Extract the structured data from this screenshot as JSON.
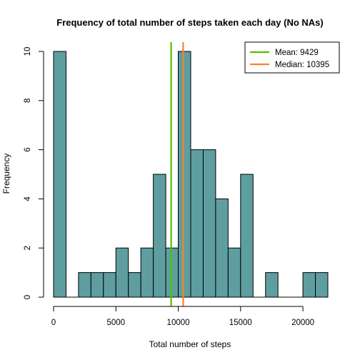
{
  "chart_data": {
    "type": "bar",
    "title": "Frequency of total number of steps taken each day (No NAs)",
    "xlabel": "Total number of steps",
    "ylabel": "Frequency",
    "bin_width": 1000,
    "bin_starts": [
      0,
      1000,
      2000,
      3000,
      4000,
      5000,
      6000,
      7000,
      8000,
      9000,
      10000,
      11000,
      12000,
      13000,
      14000,
      15000,
      16000,
      17000,
      18000,
      19000,
      20000,
      21000
    ],
    "values": [
      10,
      0,
      1,
      1,
      1,
      2,
      1,
      2,
      5,
      2,
      10,
      6,
      6,
      4,
      2,
      5,
      0,
      1,
      0,
      0,
      1,
      1
    ],
    "bar_color": "#5f9ea0",
    "xlim": [
      0,
      22000
    ],
    "ylim": [
      0,
      10
    ],
    "xticks": [
      0,
      5000,
      10000,
      15000,
      20000
    ],
    "yticks": [
      0,
      2,
      4,
      6,
      8,
      10
    ],
    "mean": {
      "label": "Mean: 9429",
      "value": 9429,
      "color": "#55c000"
    },
    "median": {
      "label": "Median: 10395",
      "value": 10395,
      "color": "#ff7f2a"
    },
    "legend_position": "top-right"
  }
}
